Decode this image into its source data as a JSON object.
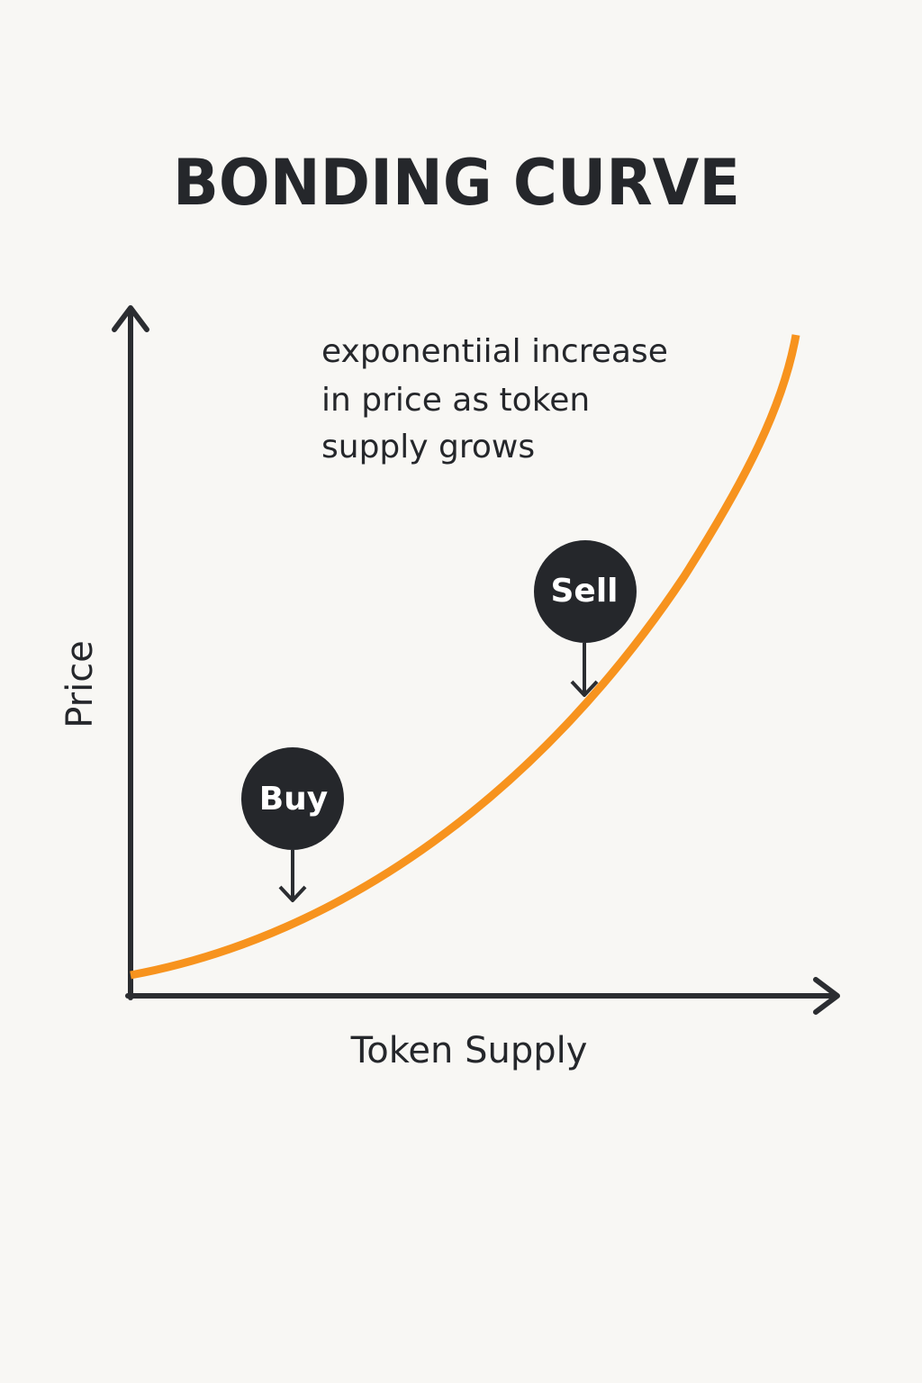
{
  "chart_data": {
    "type": "line",
    "title": "BONDING CURVE",
    "xlabel": "Token Supply",
    "ylabel": "Price",
    "annotation": {
      "lines": [
        "exponentiial increase",
        "in price as token",
        "supply grows"
      ]
    },
    "markers": [
      {
        "label": "Buy"
      },
      {
        "label": "Sell"
      }
    ],
    "colors": {
      "curve": "#f7931e",
      "axis": "#2b2d31",
      "marker_fill": "#25272b",
      "marker_text": "#ffffff",
      "background": "#f8f7f4"
    },
    "grid": false,
    "legend": "none"
  }
}
